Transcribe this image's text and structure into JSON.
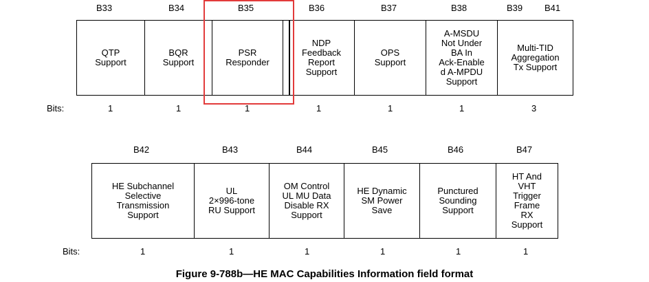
{
  "row1": {
    "bit_positions": [
      "B33",
      "B34",
      "B35",
      "B36",
      "B37",
      "B38",
      "B39",
      "B41"
    ],
    "fields": [
      {
        "label": "QTP\nSupport",
        "bits": "1"
      },
      {
        "label": "BQR\nSupport",
        "bits": "1"
      },
      {
        "label": "PSR\nResponder",
        "bits": "1"
      },
      {
        "label": "NDP\nFeedback\nReport\nSupport",
        "bits": "1"
      },
      {
        "label": "OPS\nSupport",
        "bits": "1"
      },
      {
        "label": "A-MSDU\nNot Under\nBA In\nAck-Enable\nd A-MPDU\nSupport",
        "bits": "1"
      },
      {
        "label": "Multi-TID\nAggregation\nTx Support",
        "bits": "3"
      }
    ],
    "bits_label": "Bits:"
  },
  "row2": {
    "bit_positions": [
      "B42",
      "B43",
      "B44",
      "B45",
      "B46",
      "B47"
    ],
    "fields": [
      {
        "label": "HE Subchannel\nSelective\nTransmission\nSupport",
        "bits": "1"
      },
      {
        "label": "UL\n2×996-tone\nRU Support",
        "bits": "1"
      },
      {
        "label": "OM Control\nUL MU Data\nDisable RX\nSupport",
        "bits": "1"
      },
      {
        "label": "HE Dynamic\nSM Power\nSave",
        "bits": "1"
      },
      {
        "label": "Punctured\nSounding\nSupport",
        "bits": "1"
      },
      {
        "label": "HT And\nVHT\nTrigger\nFrame\nRX\nSupport",
        "bits": "1"
      }
    ],
    "bits_label": "Bits:"
  },
  "caption": "Figure 9-788b—HE MAC Capabilities Information field format",
  "colors": {
    "highlight": "#e23a3a"
  }
}
